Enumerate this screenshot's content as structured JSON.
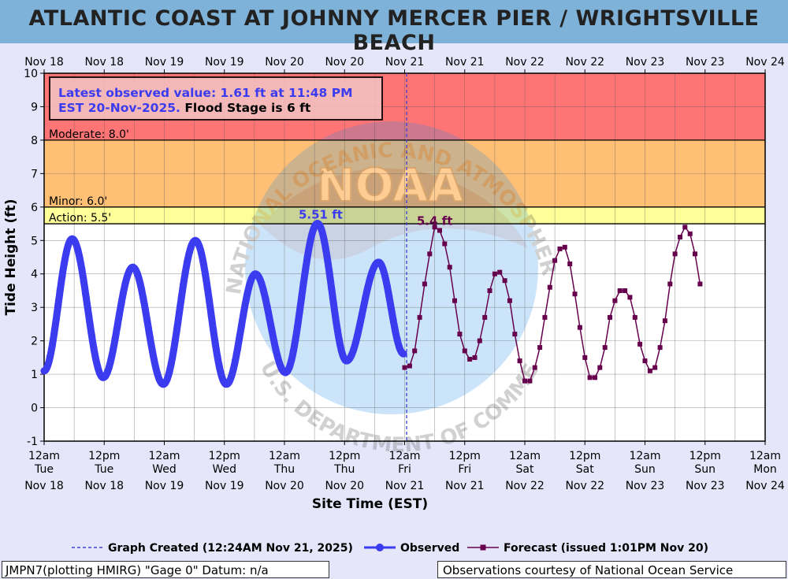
{
  "title": "ATLANTIC COAST AT JOHNNY MERCER PIER / WRIGHTSVILLE BEACH",
  "info_box": {
    "line1": "Latest observed value: 1.61 ft at 11:48 PM",
    "line2_blue": "EST 20-Nov-2025.",
    "line2_black": " Flood Stage is 6 ft"
  },
  "footer": {
    "left": "JMPN7(plotting HMIRG) \"Gage 0\" Datum: n/a",
    "right": "Observations courtesy of National Ocean Service"
  },
  "legend": {
    "created": "Graph Created (12:24AM Nov 21, 2025)",
    "observed": "Observed",
    "forecast": "Forecast (issued 1:01PM Nov 20)"
  },
  "watermark": [
    "NOAA",
    "NATIONAL OCEANIC AND ATMOSPHERIC ADMINISTRATION",
    "U.S. DEPARTMENT OF COMMERCE"
  ],
  "colors": {
    "observed": "#3b3bf0",
    "forecast": "#66004d",
    "moderate": "#ff7575",
    "minor": "#ffbf75",
    "action": "#ffff99",
    "plot_bg": "#ffffff",
    "created_line": "#4040d0"
  },
  "chart_data": {
    "type": "line",
    "xlabel": "Site Time (EST)",
    "ylabel": "Tide Height (ft)",
    "ylim": [
      -1,
      10
    ],
    "xlim_hours": [
      0,
      144
    ],
    "grid": true,
    "top_tick_labels": [
      "Nov 18",
      "Nov 18",
      "Nov 19",
      "Nov 19",
      "Nov 20",
      "Nov 20",
      "Nov 21",
      "Nov 21",
      "Nov 22",
      "Nov 22",
      "Nov 23",
      "Nov 23",
      "Nov 24"
    ],
    "bottom_tick_labels": [
      {
        "time": "12am",
        "day": "Tue",
        "date": "Nov 18"
      },
      {
        "time": "12pm",
        "day": "Tue",
        "date": "Nov 18"
      },
      {
        "time": "12am",
        "day": "Wed",
        "date": "Nov 19"
      },
      {
        "time": "12pm",
        "day": "Wed",
        "date": "Nov 19"
      },
      {
        "time": "12am",
        "day": "Thu",
        "date": "Nov 20"
      },
      {
        "time": "12pm",
        "day": "Thu",
        "date": "Nov 20"
      },
      {
        "time": "12am",
        "day": "Fri",
        "date": "Nov 21"
      },
      {
        "time": "12pm",
        "day": "Fri",
        "date": "Nov 21"
      },
      {
        "time": "12am",
        "day": "Sat",
        "date": "Nov 22"
      },
      {
        "time": "12pm",
        "day": "Sat",
        "date": "Nov 22"
      },
      {
        "time": "12am",
        "day": "Sun",
        "date": "Nov 23"
      },
      {
        "time": "12pm",
        "day": "Sun",
        "date": "Nov 23"
      },
      {
        "time": "12am",
        "day": "Mon",
        "date": "Nov 24"
      }
    ],
    "y_ticks": [
      -1,
      0,
      1,
      2,
      3,
      4,
      5,
      6,
      7,
      8,
      9,
      10
    ],
    "stages": [
      {
        "name": "Moderate",
        "label": "Moderate: 8.0'",
        "from": 8.0,
        "to": 10
      },
      {
        "name": "Minor",
        "label": "Minor: 6.0'",
        "from": 6.0,
        "to": 8.0
      },
      {
        "name": "Action",
        "label": "Action: 5.5'",
        "from": 5.5,
        "to": 6.0
      }
    ],
    "graph_created_hour": 72.4,
    "observed_peak_label": "5.51 ft",
    "forecast_peak_label": "5.4 ft",
    "observed_extrema": [
      {
        "t": 0,
        "v": 1.1
      },
      {
        "t": 5.6,
        "v": 5.05
      },
      {
        "t": 11.8,
        "v": 0.9
      },
      {
        "t": 17.7,
        "v": 4.2
      },
      {
        "t": 23.8,
        "v": 0.7
      },
      {
        "t": 30.2,
        "v": 5.0
      },
      {
        "t": 36.4,
        "v": 0.7
      },
      {
        "t": 42.2,
        "v": 4.0
      },
      {
        "t": 48.2,
        "v": 1.05
      },
      {
        "t": 54.6,
        "v": 5.51
      },
      {
        "t": 60.4,
        "v": 1.4
      },
      {
        "t": 66.8,
        "v": 4.35
      },
      {
        "t": 71.8,
        "v": 1.61
      }
    ],
    "forecast": [
      [
        72,
        1.2
      ],
      [
        73,
        1.25
      ],
      [
        74,
        1.7
      ],
      [
        75,
        2.7
      ],
      [
        76,
        3.7
      ],
      [
        77,
        4.6
      ],
      [
        78,
        5.4
      ],
      [
        79,
        5.3
      ],
      [
        80,
        4.9
      ],
      [
        81,
        4.2
      ],
      [
        82,
        3.2
      ],
      [
        83,
        2.2
      ],
      [
        84,
        1.7
      ],
      [
        85,
        1.45
      ],
      [
        86,
        1.5
      ],
      [
        87,
        2.0
      ],
      [
        88,
        2.7
      ],
      [
        89,
        3.5
      ],
      [
        90,
        4.0
      ],
      [
        91,
        4.05
      ],
      [
        92,
        3.8
      ],
      [
        93,
        3.2
      ],
      [
        94,
        2.2
      ],
      [
        95,
        1.4
      ],
      [
        96,
        0.8
      ],
      [
        97,
        0.8
      ],
      [
        98,
        1.2
      ],
      [
        99,
        1.8
      ],
      [
        100,
        2.7
      ],
      [
        101,
        3.6
      ],
      [
        102,
        4.4
      ],
      [
        103,
        4.75
      ],
      [
        104,
        4.8
      ],
      [
        105,
        4.3
      ],
      [
        106,
        3.4
      ],
      [
        107,
        2.4
      ],
      [
        108,
        1.5
      ],
      [
        109,
        0.9
      ],
      [
        110,
        0.9
      ],
      [
        111,
        1.2
      ],
      [
        112,
        1.8
      ],
      [
        113,
        2.7
      ],
      [
        114,
        3.2
      ],
      [
        115,
        3.5
      ],
      [
        116,
        3.5
      ],
      [
        117,
        3.3
      ],
      [
        118,
        2.7
      ],
      [
        119,
        1.9
      ],
      [
        120,
        1.4
      ],
      [
        121,
        1.1
      ],
      [
        122,
        1.2
      ],
      [
        123,
        1.8
      ],
      [
        124,
        2.6
      ],
      [
        125,
        3.7
      ],
      [
        126,
        4.6
      ],
      [
        127,
        5.1
      ],
      [
        128,
        5.4
      ],
      [
        129,
        5.2
      ],
      [
        130,
        4.6
      ],
      [
        131,
        3.7
      ]
    ]
  }
}
